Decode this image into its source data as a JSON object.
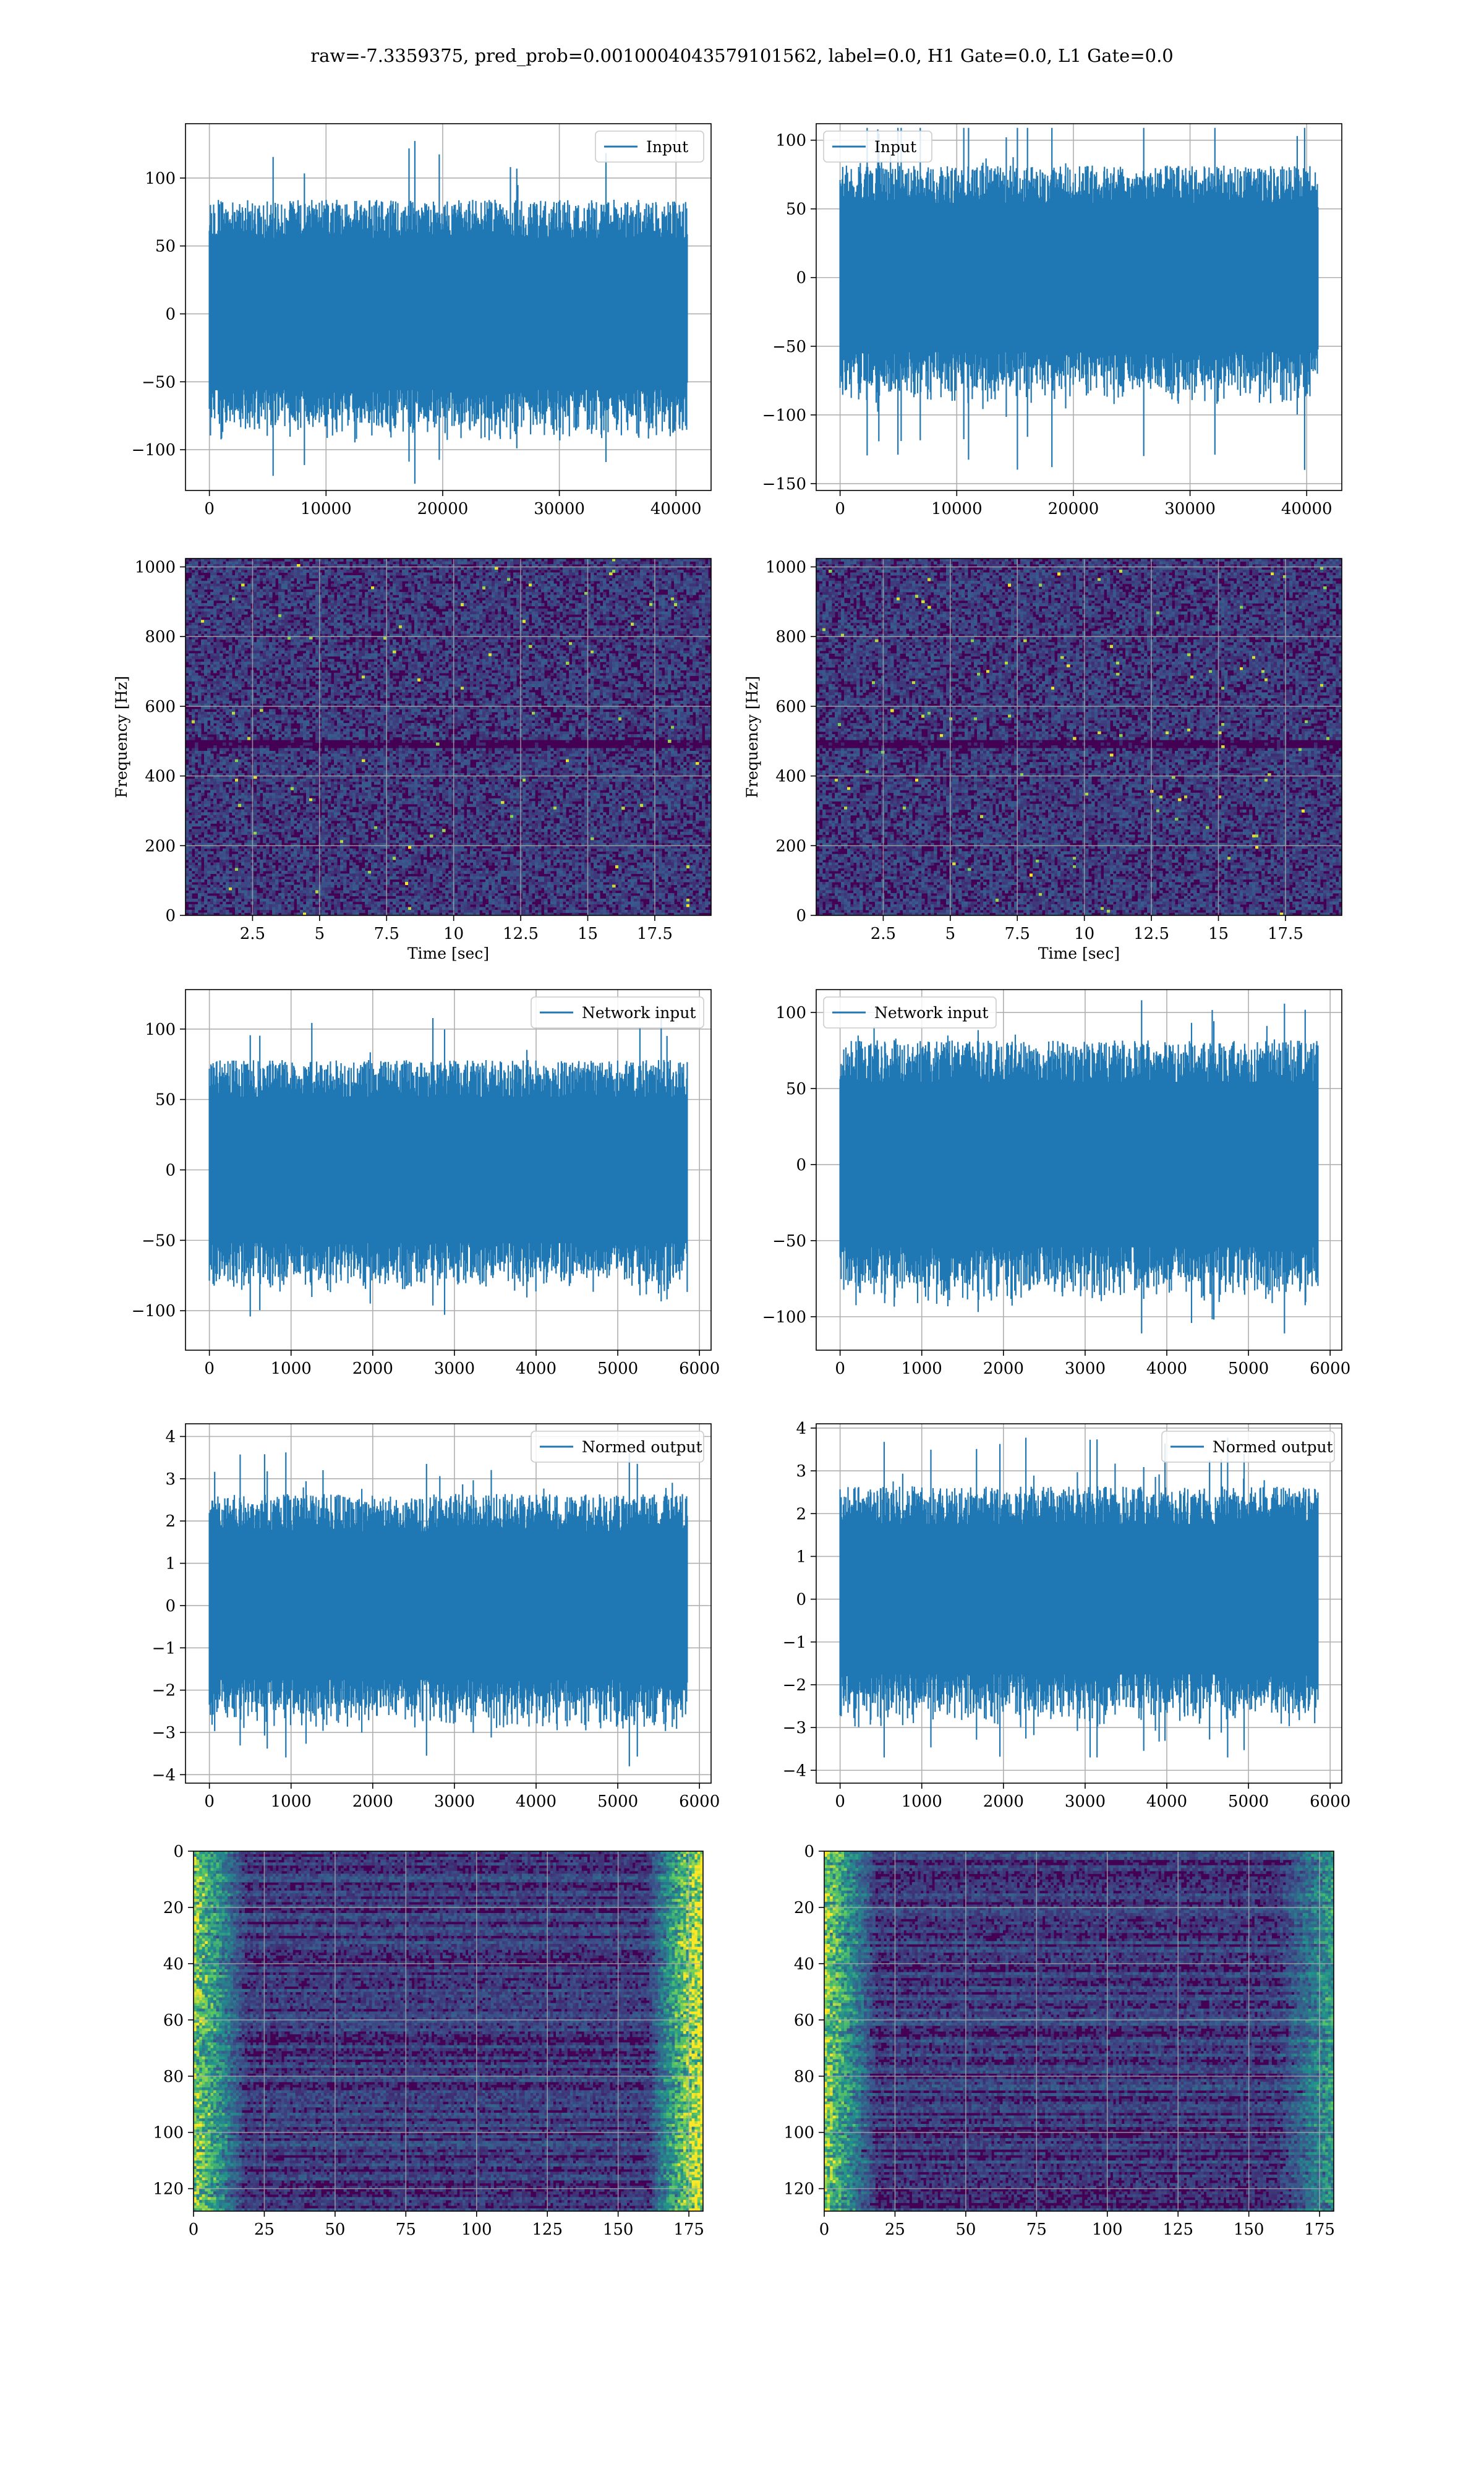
{
  "suptitle": "raw=-7.3359375, pred_prob=0.0010004043579101562, label=0.0, H1 Gate=0.0, L1 Gate=0.0",
  "colors": {
    "line": "#1f77b4",
    "grid": "#b0b0b0",
    "viridis_dark": "#440154"
  },
  "chart_data": [
    {
      "id": "r1c1",
      "type": "line",
      "legend": "Input",
      "legend_loc": "upper right",
      "x_range": [
        0,
        40960
      ],
      "ylim": [
        -130,
        140
      ],
      "xticks": [
        0,
        10000,
        20000,
        30000,
        40000
      ],
      "yticks": [
        -100,
        -50,
        0,
        50,
        100
      ],
      "xlabel": "",
      "ylabel": "",
      "envelope": {
        "body": 70,
        "peak_hi": 131,
        "peak_lo": -125
      }
    },
    {
      "id": "r1c2",
      "type": "line",
      "legend": "Input",
      "legend_loc": "upper left",
      "x_range": [
        0,
        40960
      ],
      "ylim": [
        -155,
        112
      ],
      "xticks": [
        0,
        10000,
        20000,
        30000,
        40000
      ],
      "yticks": [
        -150,
        -100,
        -50,
        0,
        50,
        100
      ],
      "xlabel": "",
      "ylabel": "",
      "envelope": {
        "body": 68,
        "peak_hi": 109,
        "peak_lo": -140
      }
    },
    {
      "id": "r2c1",
      "type": "heatmap",
      "colormap": "viridis",
      "x_range": [
        0,
        19.6
      ],
      "ylim": [
        0,
        1024
      ],
      "xticks": [
        2.5,
        5.0,
        7.5,
        10.0,
        12.5,
        15.0,
        17.5
      ],
      "yticks": [
        0,
        200,
        400,
        600,
        800,
        1000
      ],
      "xlabel": "Time [sec]",
      "ylabel": "Frequency [Hz]"
    },
    {
      "id": "r2c2",
      "type": "heatmap",
      "colormap": "viridis",
      "x_range": [
        0,
        19.6
      ],
      "ylim": [
        0,
        1024
      ],
      "xticks": [
        2.5,
        5.0,
        7.5,
        10.0,
        12.5,
        15.0,
        17.5
      ],
      "yticks": [
        0,
        200,
        400,
        600,
        800,
        1000
      ],
      "xlabel": "Time [sec]",
      "ylabel": "Frequency [Hz]"
    },
    {
      "id": "r3c1",
      "type": "line",
      "legend": "Network input",
      "legend_loc": "upper right",
      "x_range": [
        0,
        5850
      ],
      "ylim": [
        -128,
        128
      ],
      "xticks": [
        0,
        1000,
        2000,
        3000,
        4000,
        5000,
        6000
      ],
      "yticks": [
        -100,
        -50,
        0,
        50,
        100
      ],
      "xlabel": "",
      "ylabel": "",
      "envelope": {
        "body": 65,
        "peak_hi": 109,
        "peak_lo": -113
      }
    },
    {
      "id": "r3c2",
      "type": "line",
      "legend": "Network input",
      "legend_loc": "upper left",
      "x_range": [
        0,
        5850
      ],
      "ylim": [
        -122,
        115
      ],
      "xticks": [
        0,
        1000,
        2000,
        3000,
        4000,
        5000,
        6000
      ],
      "yticks": [
        -100,
        -50,
        0,
        50,
        100
      ],
      "xlabel": "",
      "ylabel": "",
      "envelope": {
        "body": 68,
        "peak_hi": 108,
        "peak_lo": -111
      }
    },
    {
      "id": "r4c1",
      "type": "line",
      "legend": "Normed output",
      "legend_loc": "upper right",
      "x_range": [
        0,
        5850
      ],
      "ylim": [
        -4.2,
        4.3
      ],
      "xticks": [
        0,
        1000,
        2000,
        3000,
        4000,
        5000,
        6000
      ],
      "yticks": [
        -4,
        -3,
        -2,
        -1,
        0,
        1,
        2,
        3,
        4
      ],
      "xlabel": "",
      "ylabel": "",
      "envelope": {
        "body": 2.2,
        "peak_hi": 3.7,
        "peak_lo": -3.8
      }
    },
    {
      "id": "r4c2",
      "type": "line",
      "legend": "Normed output",
      "legend_loc": "upper right",
      "x_range": [
        0,
        5850
      ],
      "ylim": [
        -4.3,
        4.1
      ],
      "xticks": [
        0,
        1000,
        2000,
        3000,
        4000,
        5000,
        6000
      ],
      "yticks": [
        -4,
        -3,
        -2,
        -1,
        0,
        1,
        2,
        3,
        4
      ],
      "xlabel": "",
      "ylabel": "",
      "envelope": {
        "body": 2.2,
        "peak_hi": 3.8,
        "peak_lo": -3.7
      }
    },
    {
      "id": "r5c1",
      "type": "heatmap",
      "colormap": "viridis",
      "x_range": [
        0,
        180
      ],
      "ylim": [
        128,
        0
      ],
      "xticks": [
        0,
        25,
        50,
        75,
        100,
        125,
        150,
        175
      ],
      "yticks": [
        0,
        20,
        40,
        60,
        80,
        100,
        120
      ],
      "xlabel": "",
      "ylabel": ""
    },
    {
      "id": "r5c2",
      "type": "heatmap",
      "colormap": "viridis",
      "x_range": [
        0,
        180
      ],
      "ylim": [
        128,
        0
      ],
      "xticks": [
        0,
        25,
        50,
        75,
        100,
        125,
        150,
        175
      ],
      "yticks": [
        0,
        20,
        40,
        60,
        80,
        100,
        120
      ],
      "xlabel": "",
      "ylabel": ""
    }
  ]
}
